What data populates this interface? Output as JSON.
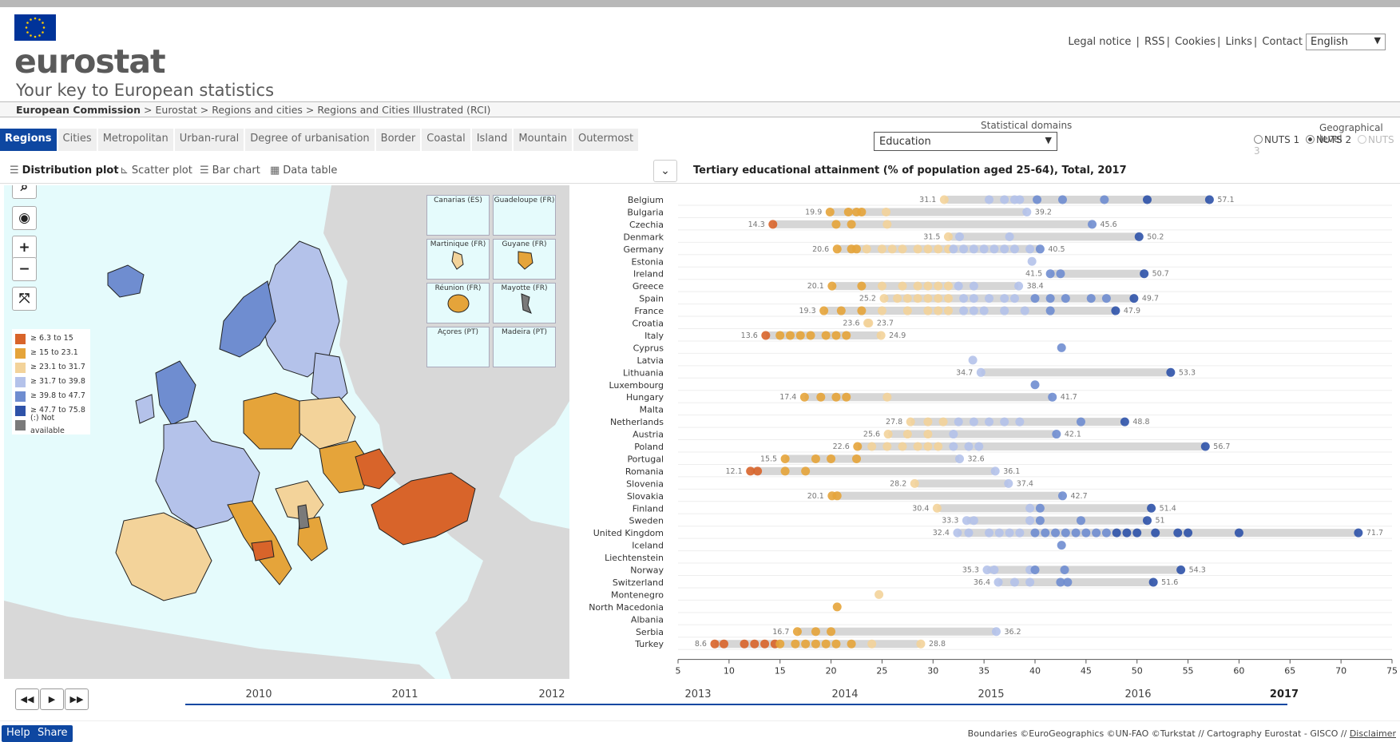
{
  "header": {
    "brand": "eurostat",
    "tagline": "Your key to European statistics",
    "links": [
      "Legal notice",
      "RSS",
      "Cookies",
      "Links",
      "Contact"
    ],
    "language": "English",
    "eu_flag_color": "#003399"
  },
  "breadcrumb": {
    "root": "European Commission",
    "items": [
      "> Eurostat",
      "> Regions and cities",
      "> Regions and Cities Illustrated (RCI)"
    ]
  },
  "tabs": [
    "Regions",
    "Cities",
    "Metropolitan",
    "Urban-rural",
    "Degree of urbanisation",
    "Border",
    "Coastal",
    "Island",
    "Mountain",
    "Outermost"
  ],
  "active_tab": "Regions",
  "domains": {
    "label": "Statistical domains",
    "selected": "Education"
  },
  "geo": {
    "label": "Geographical level",
    "options": [
      "NUTS 1",
      "NUTS 2",
      "NUTS 3"
    ],
    "selected": "NUTS 2"
  },
  "views": [
    "Distribution plot",
    "Scatter plot",
    "Bar chart",
    "Data table"
  ],
  "active_view": "Distribution plot",
  "legend": [
    {
      "label": "≥ 6.3 to 15",
      "color": "#d8642a"
    },
    {
      "label": "≥ 15 to 23.1",
      "color": "#e5a43a"
    },
    {
      "label": "≥ 23.1 to 31.7",
      "color": "#f3d39a"
    },
    {
      "label": "≥ 31.7 to 39.8",
      "color": "#b4c2ea"
    },
    {
      "label": "≥ 39.8 to 47.7",
      "color": "#6f8dd0"
    },
    {
      "label": "≥ 47.7 to 75.8",
      "color": "#2e52a8"
    },
    {
      "label": "(:) Not available",
      "color": "#7a7a7a"
    }
  ],
  "insets": [
    "Canarias (ES)",
    "Guadeloupe (FR)",
    "Martinique (FR)",
    "Guyane (FR)",
    "Réunion (FR)",
    "Mayotte (FR)",
    "Açores (PT)",
    "Madeira (PT)"
  ],
  "chart_data": {
    "type": "scatter",
    "title": "Tertiary educational attainment (% of population aged 25-64), Total, 2017",
    "xlim": [
      5,
      75
    ],
    "xticks": [
      5,
      10,
      15,
      20,
      25,
      30,
      35,
      40,
      45,
      50,
      55,
      60,
      65,
      70,
      75
    ],
    "rows": [
      {
        "country": "Belgium",
        "min": 31.1,
        "max": 57.1,
        "points": [
          31.1,
          35.5,
          37,
          38,
          38.5,
          40.2,
          42.7,
          46.8,
          51,
          57.1
        ]
      },
      {
        "country": "Bulgaria",
        "min": 19.9,
        "max": 39.2,
        "points": [
          19.9,
          21.7,
          22.5,
          23,
          25.4,
          39.2
        ]
      },
      {
        "country": "Czechia",
        "min": 14.3,
        "max": 45.6,
        "points": [
          14.3,
          20.5,
          22,
          25.5,
          45.6
        ]
      },
      {
        "country": "Denmark",
        "min": 31.5,
        "max": 50.2,
        "points": [
          31.5,
          32.6,
          37.5,
          50.2
        ]
      },
      {
        "country": "Germany",
        "min": 20.6,
        "max": 40.5,
        "points": [
          20.6,
          22,
          22.5,
          23.5,
          25,
          26,
          27,
          28.5,
          29.5,
          30.5,
          31.5,
          32,
          33,
          34,
          35,
          36,
          37,
          38,
          39.5,
          40.5
        ]
      },
      {
        "country": "Estonia",
        "min": null,
        "max": null,
        "points": [
          39.7
        ]
      },
      {
        "country": "Ireland",
        "min": 41.5,
        "max": 50.7,
        "points": [
          41.5,
          42.5,
          50.7
        ]
      },
      {
        "country": "Greece",
        "min": 20.1,
        "max": 38.4,
        "points": [
          20.1,
          23,
          25,
          27,
          28.5,
          29.5,
          30.5,
          31.5,
          32.5,
          34,
          38.4
        ]
      },
      {
        "country": "Spain",
        "min": 25.2,
        "max": 49.7,
        "points": [
          25.2,
          26.5,
          27.5,
          28.5,
          29.5,
          30.5,
          31.5,
          33,
          34,
          35.5,
          37,
          38,
          40,
          41.5,
          43,
          45.5,
          47,
          49.7
        ]
      },
      {
        "country": "France",
        "min": 19.3,
        "max": 47.9,
        "points": [
          19.3,
          21,
          23,
          25,
          27.5,
          29.5,
          30.5,
          31.5,
          33,
          34,
          35,
          37,
          39,
          41.5,
          47.9
        ]
      },
      {
        "country": "Croatia",
        "min": 23.6,
        "max": 23.7,
        "points": [
          23.6,
          23.7
        ]
      },
      {
        "country": "Italy",
        "min": 13.6,
        "max": 24.9,
        "points": [
          13.6,
          15,
          16,
          17,
          18,
          19.5,
          20.5,
          21.5,
          24.9
        ]
      },
      {
        "country": "Cyprus",
        "min": null,
        "max": null,
        "points": [
          42.6
        ]
      },
      {
        "country": "Latvia",
        "min": null,
        "max": null,
        "points": [
          33.9
        ]
      },
      {
        "country": "Lithuania",
        "min": 34.7,
        "max": 53.3,
        "points": [
          34.7,
          53.3
        ]
      },
      {
        "country": "Luxembourg",
        "min": null,
        "max": null,
        "points": [
          40
        ]
      },
      {
        "country": "Hungary",
        "min": 17.4,
        "max": 41.7,
        "points": [
          17.4,
          19,
          20.5,
          21.5,
          25.5,
          41.7
        ]
      },
      {
        "country": "Malta",
        "min": null,
        "max": null,
        "points": []
      },
      {
        "country": "Netherlands",
        "min": 27.8,
        "max": 48.8,
        "points": [
          27.8,
          29.5,
          31,
          32.5,
          34,
          35.5,
          37,
          38.5,
          44.5,
          48.8
        ]
      },
      {
        "country": "Austria",
        "min": 25.6,
        "max": 42.1,
        "points": [
          25.6,
          27.5,
          29.5,
          32,
          42.1
        ]
      },
      {
        "country": "Poland",
        "min": 22.6,
        "max": 56.7,
        "points": [
          22.6,
          24,
          25.5,
          27,
          28.5,
          29.5,
          30.5,
          32,
          33.5,
          34.5,
          56.7
        ]
      },
      {
        "country": "Portugal",
        "min": 15.5,
        "max": 32.6,
        "points": [
          15.5,
          18.5,
          20,
          22.5,
          32.6
        ]
      },
      {
        "country": "Romania",
        "min": 12.1,
        "max": 36.1,
        "points": [
          12.1,
          12.8,
          15.5,
          17.5,
          36.1
        ]
      },
      {
        "country": "Slovenia",
        "min": 28.2,
        "max": 37.4,
        "points": [
          28.2,
          37.4
        ]
      },
      {
        "country": "Slovakia",
        "min": 20.1,
        "max": 42.7,
        "points": [
          20.1,
          20.6,
          42.7
        ]
      },
      {
        "country": "Finland",
        "min": 30.4,
        "max": 51.4,
        "points": [
          30.4,
          39.5,
          40.5,
          51.4
        ]
      },
      {
        "country": "Sweden",
        "min": 33.3,
        "max": 51,
        "points": [
          33.3,
          34,
          39.5,
          40.5,
          44.5,
          51
        ]
      },
      {
        "country": "United Kingdom",
        "min": 32.4,
        "max": 71.7,
        "points": [
          32.4,
          33.5,
          35.5,
          36.5,
          37.5,
          38.5,
          40,
          41,
          42,
          43,
          44,
          45,
          46,
          47,
          48,
          49,
          50,
          51.8,
          54,
          55,
          60,
          71.7
        ]
      },
      {
        "country": "Iceland",
        "min": null,
        "max": null,
        "points": [
          42.6
        ]
      },
      {
        "country": "Liechtenstein",
        "min": null,
        "max": null,
        "points": []
      },
      {
        "country": "Norway",
        "min": 35.3,
        "max": 54.3,
        "points": [
          35.3,
          36,
          39.5,
          40,
          42.9,
          54.3
        ]
      },
      {
        "country": "Switzerland",
        "min": 36.4,
        "max": 51.6,
        "points": [
          36.4,
          38,
          39.5,
          42.5,
          43.2,
          51.6
        ]
      },
      {
        "country": "Montenegro",
        "min": null,
        "max": null,
        "points": [
          24.7
        ]
      },
      {
        "country": "North Macedonia",
        "min": null,
        "max": null,
        "points": [
          20.6
        ]
      },
      {
        "country": "Albania",
        "min": null,
        "max": null,
        "points": []
      },
      {
        "country": "Serbia",
        "min": 16.7,
        "max": 36.2,
        "points": [
          16.7,
          18.5,
          20,
          36.2
        ]
      },
      {
        "country": "Turkey",
        "min": 8.6,
        "max": 28.8,
        "points": [
          8.6,
          9.5,
          11.5,
          12.5,
          13.5,
          14.5,
          15,
          16.5,
          17.5,
          18.5,
          19.5,
          20.5,
          22,
          24,
          28.8
        ]
      }
    ]
  },
  "timeline": {
    "years": [
      "2010",
      "2011",
      "2012",
      "2013",
      "2014",
      "2015",
      "2016",
      "2017"
    ],
    "active": "2017",
    "buttons": [
      "◀◀",
      "▶",
      "▶▶"
    ]
  },
  "footer": {
    "help": "Help",
    "share": "Share",
    "credits": "Boundaries ©EuroGeographics ©UN-FAO ©Turkstat // Cartography Eurostat - GISCO //",
    "disclaimer": "Disclaimer"
  }
}
